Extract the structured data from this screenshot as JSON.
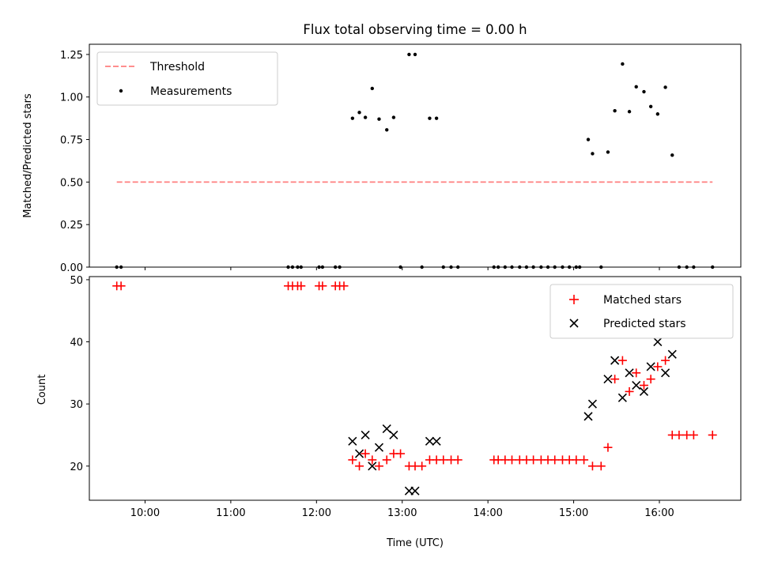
{
  "chart_data": [
    {
      "type": "scatter",
      "title": "Flux total observing time = 0.00 h",
      "ylabel": "Matched/Predicted stars",
      "xlim": [
        9.35,
        16.95
      ],
      "ylim": [
        0,
        1.31
      ],
      "yticks": [
        0,
        0.25,
        0.5,
        0.75,
        1.0,
        1.25
      ],
      "ytick_labels": [
        "0.00",
        "0.25",
        "0.50",
        "0.75",
        "1.00",
        "1.25"
      ],
      "threshold": {
        "name": "Threshold",
        "value": 0.5,
        "x_range": [
          9.67,
          16.62
        ],
        "color": "#ff7f7f"
      },
      "series": [
        {
          "name": "Measurements",
          "color": "#000000",
          "x": [
            9.67,
            9.72,
            11.67,
            11.72,
            11.78,
            11.82,
            12.03,
            12.07,
            12.22,
            12.27,
            12.42,
            12.5,
            12.57,
            12.65,
            12.73,
            12.82,
            12.9,
            12.98,
            13.08,
            13.15,
            13.23,
            13.32,
            13.4,
            13.48,
            13.57,
            13.65,
            14.07,
            14.12,
            14.2,
            14.28,
            14.37,
            14.45,
            14.53,
            14.62,
            14.7,
            14.78,
            14.87,
            14.95,
            15.03,
            15.07,
            15.17,
            15.22,
            15.32,
            15.4,
            15.48,
            15.57,
            15.65,
            15.73,
            15.82,
            15.9,
            15.98,
            16.07,
            16.15,
            16.23,
            16.32,
            16.4,
            16.62
          ],
          "y": [
            0.0,
            0.0,
            0.0,
            0.0,
            0.0,
            0.0,
            0.0,
            0.0,
            0.0,
            0.0,
            0.875,
            0.909,
            0.88,
            1.05,
            0.87,
            0.807,
            0.88,
            0.0,
            1.25,
            1.25,
            0.0,
            0.875,
            0.875,
            0.0,
            0.0,
            0.0,
            0.0,
            0.0,
            0.0,
            0.0,
            0.0,
            0.0,
            0.0,
            0.0,
            0.0,
            0.0,
            0.0,
            0.0,
            0.0,
            0.0,
            0.75,
            0.667,
            0.0,
            0.676,
            0.919,
            1.194,
            0.914,
            1.06,
            1.031,
            0.944,
            0.9,
            1.057,
            0.658,
            0.0,
            0.0,
            0.0,
            0.0
          ]
        }
      ],
      "legend": "top-left"
    },
    {
      "type": "scatter",
      "xlabel": "Time (UTC)",
      "ylabel": "Count",
      "xlim": [
        9.35,
        16.95
      ],
      "ylim": [
        14.5,
        50.5
      ],
      "yticks": [
        20,
        30,
        40,
        50
      ],
      "xticks": [
        10,
        11,
        12,
        13,
        14,
        15,
        16
      ],
      "xtick_labels": [
        "10:00",
        "11:00",
        "12:00",
        "13:00",
        "14:00",
        "15:00",
        "16:00"
      ],
      "series": [
        {
          "name": "Matched stars",
          "marker": "plus",
          "color": "#ff0000",
          "x": [
            9.67,
            9.72,
            11.67,
            11.72,
            11.78,
            11.82,
            12.03,
            12.07,
            12.22,
            12.27,
            12.32,
            12.42,
            12.5,
            12.57,
            12.65,
            12.73,
            12.82,
            12.9,
            12.98,
            13.08,
            13.15,
            13.23,
            13.32,
            13.4,
            13.48,
            13.57,
            13.65,
            14.07,
            14.12,
            14.2,
            14.28,
            14.37,
            14.45,
            14.53,
            14.62,
            14.7,
            14.78,
            14.87,
            14.95,
            15.03,
            15.12,
            15.22,
            15.32,
            15.4,
            15.48,
            15.57,
            15.65,
            15.73,
            15.82,
            15.9,
            15.98,
            16.07,
            16.15,
            16.23,
            16.32,
            16.4,
            16.62
          ],
          "y": [
            49,
            49,
            49,
            49,
            49,
            49,
            49,
            49,
            49,
            49,
            49,
            21,
            20,
            22,
            21,
            20,
            21,
            22,
            22,
            20,
            20,
            20,
            21,
            21,
            21,
            21,
            21,
            21,
            21,
            21,
            21,
            21,
            21,
            21,
            21,
            21,
            21,
            21,
            21,
            21,
            21,
            20,
            20,
            23,
            34,
            37,
            32,
            35,
            33,
            34,
            36,
            37,
            25,
            25,
            25,
            25,
            25
          ]
        },
        {
          "name": "Predicted stars",
          "marker": "x",
          "color": "#000000",
          "x": [
            12.42,
            12.5,
            12.57,
            12.65,
            12.73,
            12.82,
            12.9,
            13.08,
            13.15,
            13.32,
            13.4,
            15.17,
            15.22,
            15.4,
            15.48,
            15.57,
            15.65,
            15.73,
            15.82,
            15.9,
            15.98,
            16.07,
            16.15
          ],
          "y": [
            24,
            22,
            25,
            20,
            23,
            26,
            25,
            16,
            16,
            24,
            24,
            28,
            30,
            34,
            37,
            31,
            35,
            33,
            32,
            36,
            40,
            35,
            38
          ]
        }
      ],
      "legend": "top-right"
    }
  ]
}
